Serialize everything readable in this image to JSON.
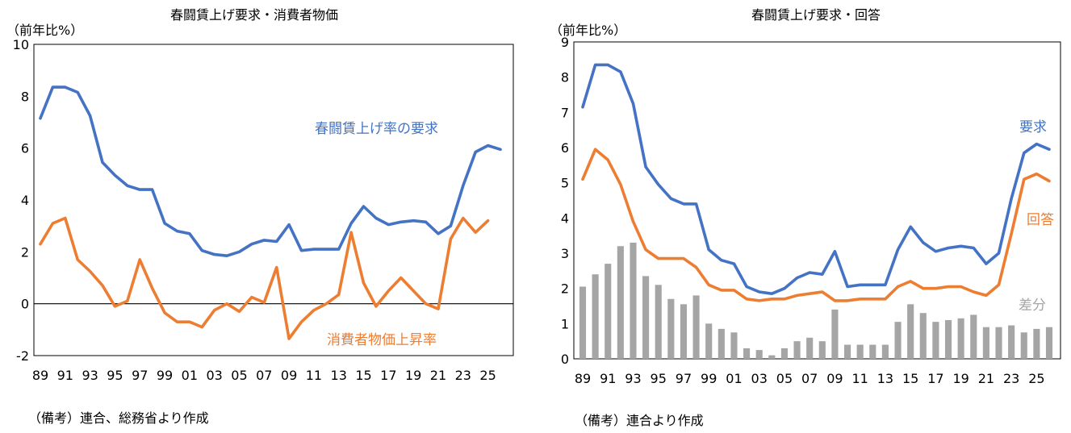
{
  "chart_data": [
    {
      "type": "line",
      "title": "春闘賃上げ要求・消費者物価",
      "y_unit": "（前年比%）",
      "ylim": [
        -2,
        10
      ],
      "yticks": [
        "-2",
        "0",
        "2",
        "4",
        "6",
        "8",
        "10"
      ],
      "ytick_values": [
        -2,
        0,
        2,
        4,
        6,
        8,
        10
      ],
      "x_tick_labels": [
        "89",
        "91",
        "93",
        "95",
        "97",
        "99",
        "01",
        "03",
        "05",
        "07",
        "09",
        "11",
        "13",
        "15",
        "17",
        "19",
        "21",
        "23",
        "25"
      ],
      "x_years": [
        1989,
        1990,
        1991,
        1992,
        1993,
        1994,
        1995,
        1996,
        1997,
        1998,
        1999,
        2000,
        2001,
        2002,
        2003,
        2004,
        2005,
        2006,
        2007,
        2008,
        2009,
        2010,
        2011,
        2012,
        2013,
        2014,
        2015,
        2016,
        2017,
        2018,
        2019,
        2020,
        2021,
        2022,
        2023,
        2024,
        2025,
        2026
      ],
      "grid": false,
      "zero_line": true,
      "series": [
        {
          "name": "春闘賃上げ率の要求",
          "color": "#4472C4",
          "values": [
            7.15,
            8.35,
            8.35,
            8.15,
            7.25,
            5.45,
            4.95,
            4.55,
            4.4,
            4.4,
            3.1,
            2.8,
            2.7,
            2.05,
            1.9,
            1.85,
            2.0,
            2.3,
            2.45,
            2.4,
            3.05,
            2.05,
            2.1,
            2.1,
            2.1,
            3.1,
            3.75,
            3.3,
            3.05,
            3.15,
            3.2,
            3.15,
            2.7,
            3.0,
            4.55,
            5.85,
            6.1,
            5.95
          ]
        },
        {
          "name": "消費者物価上昇率",
          "color": "#ED7D31",
          "values": [
            2.3,
            3.1,
            3.3,
            1.7,
            1.25,
            0.7,
            -0.1,
            0.1,
            1.7,
            0.6,
            -0.35,
            -0.7,
            -0.7,
            -0.9,
            -0.25,
            0.0,
            -0.3,
            0.25,
            0.05,
            1.4,
            -1.35,
            -0.7,
            -0.25,
            0.0,
            0.35,
            2.75,
            0.8,
            -0.1,
            0.5,
            1.0,
            0.5,
            0.0,
            -0.2,
            2.5,
            3.3,
            2.75,
            3.2,
            null
          ]
        }
      ],
      "annotations": [
        "春闘賃上げ率の要求",
        "消費者物価上昇率"
      ]
    },
    {
      "type": "line",
      "title": "春闘賃上げ要求・回答",
      "y_unit": "（前年比%）",
      "ylim": [
        0,
        9
      ],
      "yticks": [
        "0",
        "1",
        "2",
        "3",
        "4",
        "5",
        "6",
        "7",
        "8",
        "9"
      ],
      "ytick_values": [
        0,
        1,
        2,
        3,
        4,
        5,
        6,
        7,
        8,
        9
      ],
      "x_tick_labels": [
        "89",
        "91",
        "93",
        "95",
        "97",
        "99",
        "01",
        "03",
        "05",
        "07",
        "09",
        "11",
        "13",
        "15",
        "17",
        "19",
        "21",
        "23",
        "25"
      ],
      "x_years": [
        1989,
        1990,
        1991,
        1992,
        1993,
        1994,
        1995,
        1996,
        1997,
        1998,
        1999,
        2000,
        2001,
        2002,
        2003,
        2004,
        2005,
        2006,
        2007,
        2008,
        2009,
        2010,
        2011,
        2012,
        2013,
        2014,
        2015,
        2016,
        2017,
        2018,
        2019,
        2020,
        2021,
        2022,
        2023,
        2024,
        2025,
        2026
      ],
      "grid": false,
      "series": [
        {
          "name": "要求",
          "color": "#4472C4",
          "kind": "line",
          "values": [
            7.15,
            8.35,
            8.35,
            8.15,
            7.25,
            5.45,
            4.95,
            4.55,
            4.4,
            4.4,
            3.1,
            2.8,
            2.7,
            2.05,
            1.9,
            1.85,
            2.0,
            2.3,
            2.45,
            2.4,
            3.05,
            2.05,
            2.1,
            2.1,
            2.1,
            3.1,
            3.75,
            3.3,
            3.05,
            3.15,
            3.2,
            3.15,
            2.7,
            3.0,
            4.55,
            5.85,
            6.1,
            5.95
          ]
        },
        {
          "name": "回答",
          "color": "#ED7D31",
          "kind": "line",
          "values": [
            5.1,
            5.95,
            5.65,
            4.95,
            3.9,
            3.1,
            2.85,
            2.85,
            2.85,
            2.6,
            2.1,
            1.95,
            1.95,
            1.7,
            1.65,
            1.7,
            1.7,
            1.8,
            1.85,
            1.9,
            1.65,
            1.65,
            1.7,
            1.7,
            1.7,
            2.05,
            2.2,
            2.0,
            2.0,
            2.05,
            2.05,
            1.9,
            1.8,
            2.1,
            3.55,
            5.1,
            5.25,
            5.05
          ]
        },
        {
          "name": "差分",
          "color": "#A5A5A5",
          "kind": "bar",
          "values": [
            2.05,
            2.4,
            2.7,
            3.2,
            3.3,
            2.35,
            2.1,
            1.7,
            1.55,
            1.8,
            1.0,
            0.85,
            0.75,
            0.3,
            0.25,
            0.1,
            0.3,
            0.5,
            0.6,
            0.5,
            1.4,
            0.4,
            0.4,
            0.4,
            0.4,
            1.05,
            1.55,
            1.3,
            1.05,
            1.1,
            1.15,
            1.25,
            0.9,
            0.9,
            0.95,
            0.75,
            0.85,
            0.9
          ]
        }
      ],
      "annotations": [
        "要求",
        "回答",
        "差分"
      ]
    }
  ],
  "notes": {
    "left": "（備考）連合、総務省より作成",
    "right": "（備考）連合より作成"
  }
}
